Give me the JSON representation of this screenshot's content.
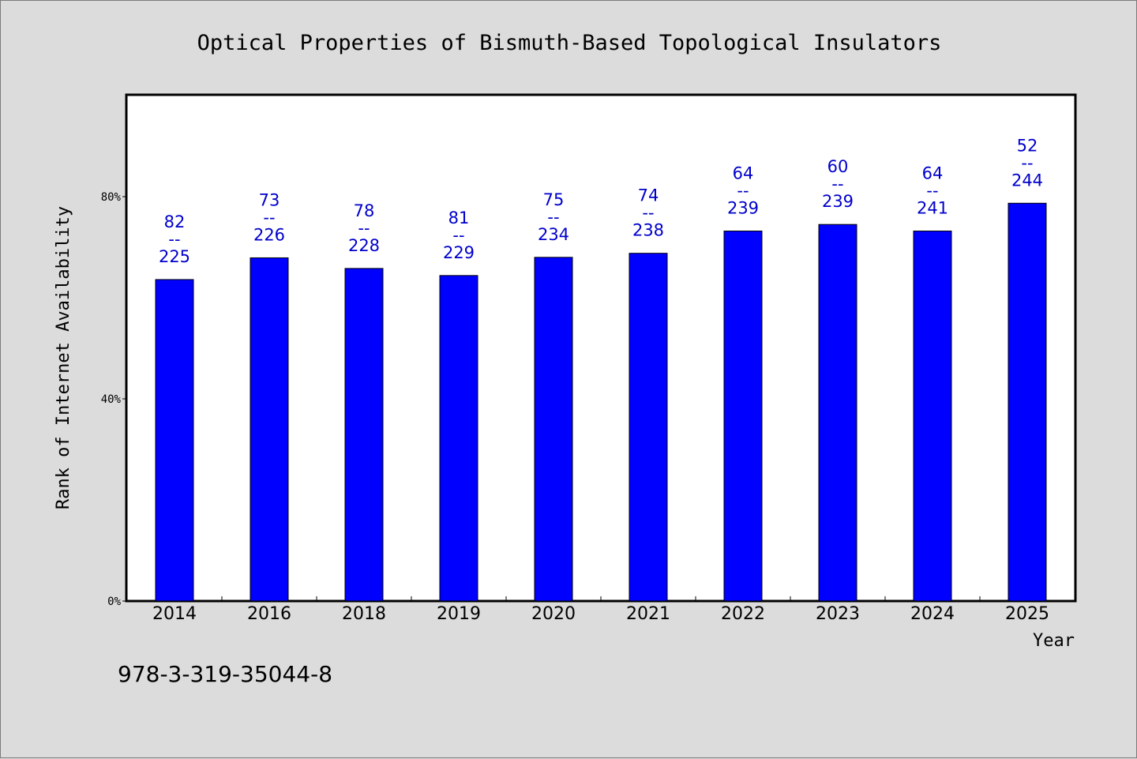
{
  "chart_data": {
    "type": "bar",
    "title": "Optical Properties of Bismuth-Based Topological Insulators",
    "xlabel": "Year",
    "ylabel": "Rank of Internet Availability",
    "categories": [
      "2014",
      "2016",
      "2018",
      "2019",
      "2020",
      "2021",
      "2022",
      "2023",
      "2024",
      "2025"
    ],
    "values": [
      0.636,
      0.679,
      0.658,
      0.644,
      0.68,
      0.688,
      0.732,
      0.745,
      0.732,
      0.787
    ],
    "rank": [
      82,
      73,
      78,
      81,
      75,
      74,
      64,
      60,
      64,
      52
    ],
    "total": [
      225,
      226,
      228,
      229,
      234,
      238,
      239,
      239,
      241,
      244
    ],
    "label_separator": "--",
    "ylim": [
      0,
      1
    ],
    "yticks": [
      0,
      0.4,
      0.8
    ],
    "ytick_labels": [
      "0%",
      "40%",
      "80%"
    ],
    "bar_color": "#0000ff",
    "label_color": "#0000cc",
    "grid": false,
    "legend": "none"
  },
  "footer": {
    "isbn": "978-3-319-35044-8"
  }
}
